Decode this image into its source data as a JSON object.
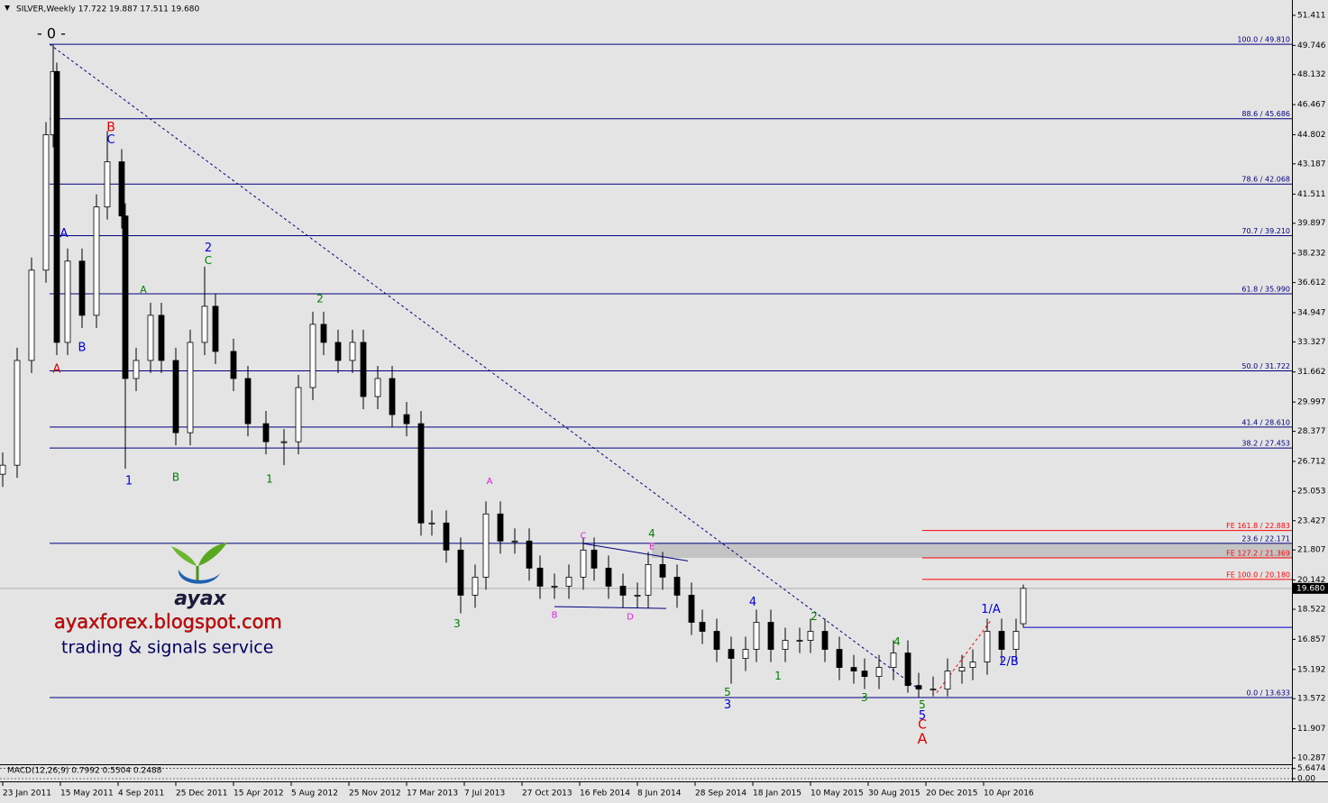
{
  "chart_data": {
    "type": "candlestick",
    "title": "SILVER,Weekly  17.722 19.887 17.511 19.680",
    "xlim": [
      -0.75,
      357.5
    ],
    "ylim": [
      9.94,
      52.26
    ],
    "yticks": [
      51.411,
      49.746,
      48.132,
      46.467,
      44.802,
      43.187,
      41.511,
      39.897,
      38.232,
      36.612,
      34.947,
      33.327,
      31.662,
      29.997,
      28.377,
      26.712,
      25.053,
      23.427,
      21.807,
      20.142,
      18.522,
      16.857,
      15.192,
      13.572,
      11.907,
      10.287
    ],
    "xticks": [
      {
        "value": 0,
        "label": "23 Jan 2011"
      },
      {
        "value": 16,
        "label": "15 May 2011"
      },
      {
        "value": 32,
        "label": "4 Sep 2011"
      },
      {
        "value": 48,
        "label": "25 Dec 2011"
      },
      {
        "value": 64,
        "label": "15 Apr 2012"
      },
      {
        "value": 80,
        "label": "5 Aug 2012"
      },
      {
        "value": 96,
        "label": "25 Nov 2012"
      },
      {
        "value": 112,
        "label": "17 Mar 2013"
      },
      {
        "value": 128,
        "label": "7 Jul 2013"
      },
      {
        "value": 144,
        "label": "27 Oct 2013"
      },
      {
        "value": 160,
        "label": "16 Feb 2014"
      },
      {
        "value": 176,
        "label": "8 Jun 2014"
      },
      {
        "value": 192,
        "label": "28 Sep 2014"
      },
      {
        "value": 208,
        "label": "18 Jan 2015"
      },
      {
        "value": 224,
        "label": "10 May 2015"
      },
      {
        "value": 240,
        "label": "30 Aug 2015"
      },
      {
        "value": 256,
        "label": "20 Dec 2015"
      },
      {
        "value": 272,
        "label": "10 Apr 2016"
      }
    ],
    "x": [
      0,
      4,
      8,
      12,
      14,
      15,
      18,
      22,
      26,
      29,
      33,
      34,
      37,
      41,
      44,
      48,
      52,
      56,
      59,
      64,
      68,
      73,
      78,
      82,
      86,
      89,
      93,
      97,
      100,
      104,
      108,
      112,
      116,
      119,
      123,
      127,
      131,
      134,
      138,
      142,
      146,
      149,
      153,
      157,
      161,
      164,
      168,
      172,
      176,
      179,
      183,
      187,
      191,
      194,
      198,
      202,
      206,
      209,
      213,
      217,
      221,
      224,
      228,
      232,
      236,
      239,
      243,
      247,
      251,
      254,
      258,
      262,
      266,
      269,
      273,
      277,
      281,
      283
    ],
    "open": [
      26.0,
      26.5,
      32.3,
      37.3,
      44.8,
      48.3,
      33.3,
      37.8,
      34.8,
      40.8,
      43.3,
      40.3,
      31.3,
      32.3,
      34.8,
      32.3,
      28.3,
      33.3,
      35.3,
      32.8,
      31.3,
      28.8,
      27.8,
      27.8,
      30.8,
      34.3,
      33.3,
      32.3,
      33.3,
      30.3,
      31.3,
      29.3,
      28.8,
      23.3,
      23.3,
      21.8,
      19.3,
      20.3,
      23.8,
      22.3,
      22.3,
      20.8,
      19.8,
      19.8,
      20.3,
      21.8,
      20.8,
      19.8,
      19.3,
      19.3,
      21.0,
      20.3,
      19.3,
      17.8,
      17.3,
      16.3,
      15.8,
      16.3,
      17.8,
      16.3,
      16.8,
      16.8,
      17.3,
      16.3,
      15.3,
      15.1,
      14.8,
      15.3,
      16.1,
      14.3,
      14.1,
      14.1,
      15.1,
      15.3,
      15.6,
      17.3,
      16.3,
      17.722
    ],
    "high": [
      27.2,
      33.0,
      38.0,
      45.5,
      49.81,
      48.8,
      38.5,
      38.5,
      41.5,
      45.0,
      44.0,
      41.0,
      33.0,
      35.5,
      35.5,
      33.0,
      34.0,
      37.5,
      36.0,
      33.5,
      32.0,
      29.5,
      28.5,
      31.5,
      35.0,
      35.0,
      34.0,
      34.0,
      34.0,
      32.0,
      32.0,
      30.0,
      29.5,
      24.0,
      24.0,
      22.5,
      21.0,
      24.5,
      24.5,
      23.0,
      23.0,
      21.5,
      20.5,
      21.0,
      22.5,
      22.5,
      21.5,
      20.5,
      20.0,
      21.7,
      21.7,
      21.0,
      20.0,
      18.5,
      18.0,
      17.0,
      17.0,
      18.5,
      18.5,
      17.5,
      17.5,
      18.0,
      18.0,
      17.0,
      16.0,
      15.8,
      16.0,
      16.8,
      16.8,
      15.0,
      14.8,
      15.8,
      16.0,
      16.3,
      18.0,
      18.0,
      18.0,
      19.887
    ],
    "low": [
      25.3,
      25.8,
      31.6,
      36.6,
      44.1,
      32.6,
      32.6,
      34.1,
      34.1,
      40.1,
      39.6,
      26.3,
      30.6,
      31.6,
      31.6,
      27.6,
      27.6,
      32.6,
      32.1,
      30.6,
      28.1,
      27.1,
      26.5,
      27.1,
      30.1,
      32.6,
      31.6,
      31.6,
      29.6,
      29.6,
      28.6,
      28.1,
      22.6,
      22.6,
      21.1,
      18.3,
      18.6,
      19.6,
      21.6,
      21.6,
      20.1,
      19.1,
      19.1,
      19.1,
      19.6,
      20.1,
      19.1,
      18.6,
      18.6,
      18.6,
      19.6,
      18.6,
      17.1,
      16.6,
      15.6,
      14.4,
      15.1,
      15.6,
      15.6,
      15.6,
      16.1,
      16.1,
      15.6,
      14.6,
      14.4,
      14.1,
      14.1,
      14.6,
      13.9,
      13.633,
      13.7,
      13.7,
      14.4,
      14.6,
      14.9,
      15.6,
      15.6,
      17.511
    ],
    "close": [
      26.5,
      32.3,
      37.3,
      44.8,
      48.3,
      33.3,
      37.8,
      34.8,
      40.8,
      43.3,
      40.3,
      31.3,
      32.3,
      34.8,
      32.3,
      28.3,
      33.3,
      35.3,
      32.8,
      31.3,
      28.8,
      27.8,
      27.8,
      30.8,
      34.3,
      33.3,
      32.3,
      33.3,
      30.3,
      31.3,
      29.3,
      28.8,
      23.3,
      23.3,
      21.8,
      19.3,
      20.3,
      23.8,
      22.3,
      22.3,
      20.8,
      19.8,
      19.8,
      20.3,
      21.8,
      20.8,
      19.8,
      19.3,
      19.3,
      21.0,
      20.3,
      19.3,
      17.8,
      17.3,
      16.3,
      15.8,
      16.3,
      17.8,
      16.3,
      16.8,
      16.8,
      17.3,
      16.3,
      15.3,
      15.1,
      14.8,
      15.3,
      16.1,
      14.3,
      14.1,
      14.1,
      15.1,
      15.3,
      15.6,
      17.3,
      16.3,
      17.3,
      19.68
    ],
    "up_color": "#ffffff",
    "down_color": "#000000",
    "current_price": {
      "value": 19.68,
      "label": "19.680"
    },
    "fib_start": 13,
    "fib_levels": [
      {
        "label": "100.0 / 49.810",
        "value": 49.81
      },
      {
        "label": "88.6 / 45.686",
        "value": 45.686
      },
      {
        "label": "78.6 / 42.068",
        "value": 42.068
      },
      {
        "label": "70.7 / 39.210",
        "value": 39.21
      },
      {
        "label": "61.8 / 35.990",
        "value": 35.99
      },
      {
        "label": "50.0 / 31.722",
        "value": 31.722
      },
      {
        "label": "41.4 / 28.610",
        "value": 28.61
      },
      {
        "label": "38.2 / 27.453",
        "value": 27.453
      },
      {
        "label": "23.6 / 22.171",
        "value": 22.171
      },
      {
        "label": "0.0 / 13.633",
        "value": 13.633
      }
    ],
    "fib_color": "#000080",
    "fe_start": 255,
    "fe_levels": [
      {
        "label": "FE 161.8 / 22.883",
        "value": 22.883
      },
      {
        "label": "FE 127.2 / 21.369",
        "value": 21.369
      },
      {
        "label": "FE 100.0 / 20.180",
        "value": 20.18
      }
    ],
    "fe_color": "#ff0000",
    "zone_start": 180,
    "hline": {
      "value": 17.52,
      "start": 283,
      "color": "#0000cc"
    },
    "trendlines": [
      {
        "from": [
          13,
          49.81
        ],
        "to": [
          254,
          14.1
        ],
        "color": "#000080",
        "dashed": true
      },
      {
        "from": [
          259,
          13.9
        ],
        "to": [
          274,
          17.9
        ],
        "color": "#ff0000",
        "dashed": true
      },
      {
        "from": [
          161,
          22.16
        ],
        "to": [
          190,
          21.2
        ],
        "color": "#000080",
        "dashed": false
      },
      {
        "from": [
          153,
          18.67
        ],
        "to": [
          184,
          18.57
        ],
        "color": "#000080",
        "dashed": false
      }
    ],
    "wave_labels": [
      {
        "text": "- 0 -",
        "x": 13.5,
        "y": 50.36,
        "color": "#000000",
        "size": 16
      },
      {
        "text": "A",
        "x": 15,
        "y": 31.8,
        "color": "#e00000",
        "size": 13
      },
      {
        "text": "A",
        "x": 17,
        "y": 39.3,
        "color": "#0000dd",
        "size": 13
      },
      {
        "text": "B",
        "x": 22,
        "y": 33.0,
        "color": "#0000dd",
        "size": 13
      },
      {
        "text": "B",
        "x": 30,
        "y": 45.2,
        "color": "#e00000",
        "size": 14
      },
      {
        "text": "C",
        "x": 30,
        "y": 44.5,
        "color": "#0000dd",
        "size": 13
      },
      {
        "text": "1",
        "x": 35,
        "y": 25.6,
        "color": "#0000dd",
        "size": 13
      },
      {
        "text": "A",
        "x": 39,
        "y": 36.2,
        "color": "#008000",
        "size": 11
      },
      {
        "text": "B",
        "x": 48,
        "y": 25.8,
        "color": "#008000",
        "size": 12
      },
      {
        "text": "2",
        "x": 57,
        "y": 38.5,
        "color": "#0000dd",
        "size": 13
      },
      {
        "text": "C",
        "x": 57,
        "y": 37.8,
        "color": "#008000",
        "size": 12
      },
      {
        "text": "1",
        "x": 74,
        "y": 25.7,
        "color": "#008000",
        "size": 12
      },
      {
        "text": "2",
        "x": 88,
        "y": 35.7,
        "color": "#008000",
        "size": 12
      },
      {
        "text": "3",
        "x": 126,
        "y": 17.7,
        "color": "#008000",
        "size": 12
      },
      {
        "text": "A",
        "x": 135,
        "y": 25.6,
        "color": "#e020e0",
        "size": 10
      },
      {
        "text": "C",
        "x": 161,
        "y": 22.6,
        "color": "#e020e0",
        "size": 10
      },
      {
        "text": "B",
        "x": 153,
        "y": 18.2,
        "color": "#e020e0",
        "size": 10
      },
      {
        "text": "D",
        "x": 174,
        "y": 18.1,
        "color": "#e020e0",
        "size": 10
      },
      {
        "text": "4",
        "x": 180,
        "y": 22.7,
        "color": "#008000",
        "size": 12
      },
      {
        "text": "E",
        "x": 180,
        "y": 22.0,
        "color": "#e020e0",
        "size": 10
      },
      {
        "text": "4",
        "x": 208,
        "y": 18.9,
        "color": "#0000dd",
        "size": 13
      },
      {
        "text": "5",
        "x": 201,
        "y": 13.9,
        "color": "#008000",
        "size": 12
      },
      {
        "text": "3",
        "x": 201,
        "y": 13.2,
        "color": "#0000dd",
        "size": 13
      },
      {
        "text": "1",
        "x": 215,
        "y": 14.8,
        "color": "#008000",
        "size": 12
      },
      {
        "text": "2",
        "x": 225,
        "y": 18.1,
        "color": "#008000",
        "size": 12
      },
      {
        "text": "3",
        "x": 239,
        "y": 13.6,
        "color": "#008000",
        "size": 12
      },
      {
        "text": "4",
        "x": 248,
        "y": 16.7,
        "color": "#008000",
        "size": 12
      },
      {
        "text": "5",
        "x": 255,
        "y": 13.2,
        "color": "#008000",
        "size": 12
      },
      {
        "text": "5",
        "x": 255,
        "y": 12.6,
        "color": "#0000dd",
        "size": 13
      },
      {
        "text": "C",
        "x": 255,
        "y": 12.1,
        "color": "#e00000",
        "size": 14
      },
      {
        "text": "A",
        "x": 255,
        "y": 11.3,
        "color": "#e00000",
        "size": 16
      },
      {
        "text": "1/A",
        "x": 274,
        "y": 18.5,
        "color": "#0000dd",
        "size": 13
      },
      {
        "text": "2/B",
        "x": 279,
        "y": 15.6,
        "color": "#0000dd",
        "size": 13
      }
    ],
    "indicator": {
      "title": "MACD(12,26,9) 0.7992 0.5504 0.2488",
      "yticks": [
        {
          "value": 5.6474,
          "label": "5.6474"
        },
        {
          "value": 0,
          "label": "0.00"
        }
      ],
      "ylim": [
        -1,
        7
      ]
    },
    "logo": {
      "name": "ayax",
      "url": "ayaxforex.blogspot.com",
      "tagline": "trading & signals service"
    }
  }
}
